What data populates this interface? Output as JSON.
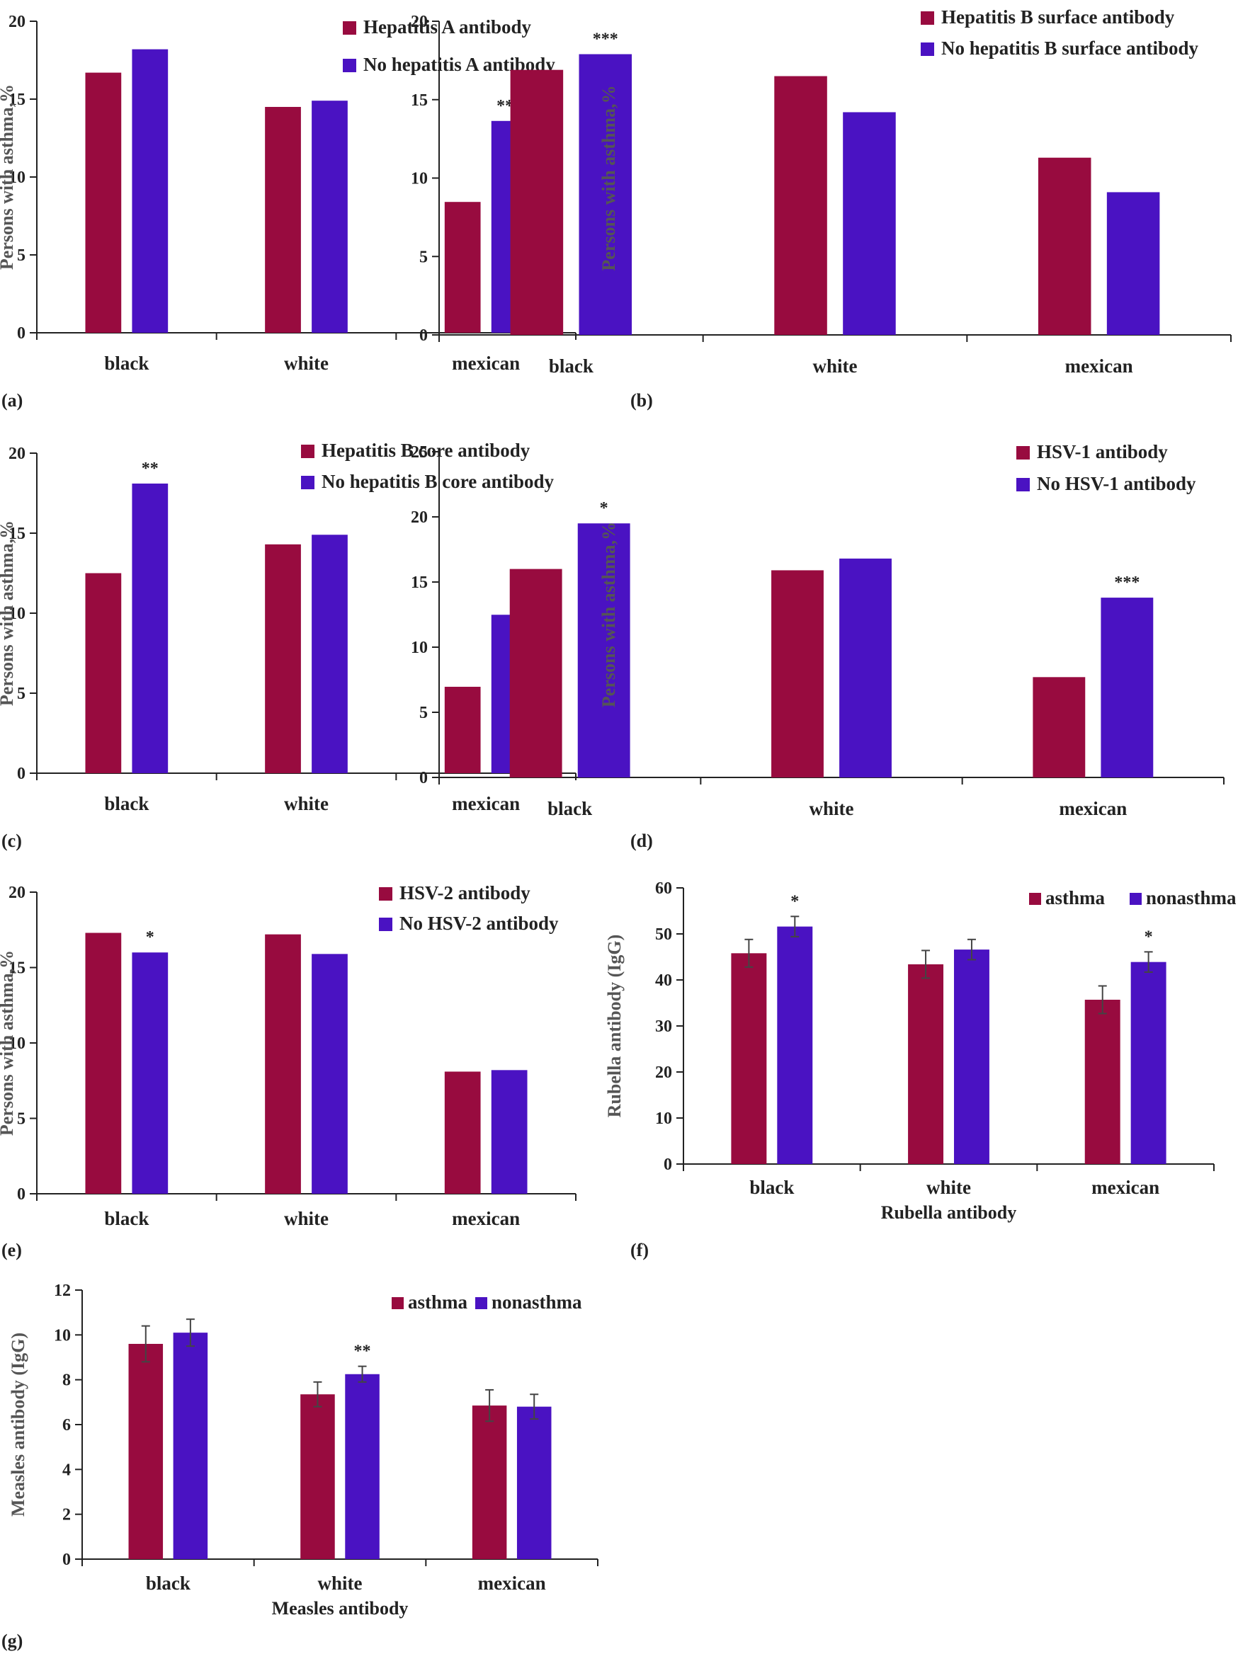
{
  "colors": {
    "series1": "#980b3f",
    "series2": "#4a12c2",
    "axis": "#222222",
    "error": "#444444"
  },
  "chart_data": [
    {
      "panel": "(a)",
      "type": "bar",
      "categories": [
        "black",
        "white",
        "mexican"
      ],
      "ylabel": "Persons with asthma,%",
      "xlabel": "",
      "ylim": [
        0,
        20
      ],
      "yticks": [
        0,
        5,
        10,
        15,
        20
      ],
      "legend_style": "stacked",
      "series": [
        {
          "name": "Hepatitis A antibody",
          "values": [
            16.7,
            14.5,
            8.4
          ]
        },
        {
          "name": "No hepatitis A antibody",
          "values": [
            18.2,
            14.9,
            13.6
          ]
        }
      ],
      "annotations": [
        {
          "category": 2,
          "series": 1,
          "text": "***"
        }
      ]
    },
    {
      "panel": "(b)",
      "type": "bar",
      "categories": [
        "black",
        "white",
        "mexican"
      ],
      "ylabel": "Persons with asthma,%",
      "xlabel": "",
      "ylim": [
        0,
        20
      ],
      "yticks": [
        0,
        5,
        10,
        15,
        20
      ],
      "legend_style": "stacked",
      "series": [
        {
          "name": "Hepatitis B surface antibody",
          "values": [
            16.9,
            16.5,
            11.3
          ]
        },
        {
          "name": "No hepatitis B surface antibody",
          "values": [
            17.9,
            14.2,
            9.1
          ]
        }
      ],
      "annotations": [
        {
          "category": 0,
          "series": 1,
          "text": "***"
        }
      ]
    },
    {
      "panel": "(c)",
      "type": "bar",
      "categories": [
        "black",
        "white",
        "mexican"
      ],
      "ylabel": "Persons with asthma,%",
      "xlabel": "",
      "ylim": [
        0,
        20
      ],
      "yticks": [
        0,
        5,
        10,
        15,
        20
      ],
      "legend_style": "stacked",
      "series": [
        {
          "name": "Hepatitis B core antibody",
          "values": [
            12.5,
            14.3,
            5.4
          ]
        },
        {
          "name": "No hepatitis B core antibody",
          "values": [
            18.1,
            14.9,
            9.9
          ]
        }
      ],
      "annotations": [
        {
          "category": 0,
          "series": 1,
          "text": "**"
        }
      ]
    },
    {
      "panel": "(d)",
      "type": "bar",
      "categories": [
        "black",
        "white",
        "mexican"
      ],
      "ylabel": "Persons with asthma,%",
      "xlabel": "",
      "ylim": [
        0,
        25
      ],
      "yticks": [
        0,
        5,
        10,
        15,
        20,
        25
      ],
      "legend_style": "stacked",
      "series": [
        {
          "name": "HSV-1 antibody",
          "values": [
            16.0,
            15.9,
            7.7
          ]
        },
        {
          "name": "No HSV-1 antibody",
          "values": [
            19.5,
            16.8,
            13.8
          ]
        }
      ],
      "annotations": [
        {
          "category": 0,
          "series": 1,
          "text": "*"
        },
        {
          "category": 2,
          "series": 1,
          "text": "***"
        }
      ]
    },
    {
      "panel": "(e)",
      "type": "bar",
      "categories": [
        "black",
        "white",
        "mexican"
      ],
      "ylabel": "Persons with asthma,%",
      "xlabel": "",
      "ylim": [
        0,
        20
      ],
      "yticks": [
        0,
        5,
        10,
        15,
        20
      ],
      "legend_style": "stacked",
      "series": [
        {
          "name": "HSV-2 antibody",
          "values": [
            17.3,
            17.2,
            8.1
          ]
        },
        {
          "name": "No HSV-2 antibody",
          "values": [
            16.0,
            15.9,
            8.2
          ]
        }
      ],
      "annotations": [
        {
          "category": 0,
          "series": 1,
          "text": "*"
        }
      ]
    },
    {
      "panel": "(f)",
      "type": "bar",
      "categories": [
        "black",
        "white",
        "mexican"
      ],
      "ylabel": "Rubella antibody (IgG)",
      "xlabel": "Rubella antibody",
      "ylim": [
        0,
        60
      ],
      "yticks": [
        0,
        10,
        20,
        30,
        40,
        50,
        60
      ],
      "legend_style": "inline",
      "series": [
        {
          "name": "asthma",
          "values": [
            45.8,
            43.4,
            35.7
          ],
          "errors": [
            3.0,
            3.0,
            3.0
          ]
        },
        {
          "name": "nonasthma",
          "values": [
            51.6,
            46.6,
            43.9
          ],
          "errors": [
            2.2,
            2.2,
            2.2
          ]
        }
      ],
      "annotations": [
        {
          "category": 0,
          "series": 1,
          "text": "*"
        },
        {
          "category": 2,
          "series": 1,
          "text": "*"
        }
      ]
    },
    {
      "panel": "(g)",
      "type": "bar",
      "categories": [
        "black",
        "white",
        "mexican"
      ],
      "ylabel": "Measles antibody (IgG)",
      "xlabel": "Measles antibody",
      "ylim": [
        0,
        12
      ],
      "yticks": [
        0,
        2,
        4,
        6,
        8,
        10,
        12
      ],
      "legend_style": "inline",
      "series": [
        {
          "name": "asthma",
          "values": [
            9.6,
            7.35,
            6.85
          ],
          "errors": [
            0.8,
            0.55,
            0.7
          ]
        },
        {
          "name": "nonasthma",
          "values": [
            10.1,
            8.25,
            6.8
          ],
          "errors": [
            0.6,
            0.35,
            0.55
          ]
        }
      ],
      "annotations": [
        {
          "category": 1,
          "series": 1,
          "text": "**"
        }
      ]
    }
  ]
}
